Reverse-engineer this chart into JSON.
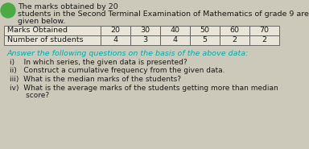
{
  "title_line1": "The marks obtained by 20",
  "title_line2": "students in the Second Terminal Examination of Mathematics of grade 9 are",
  "title_line3": "given below.",
  "table_col1_header": "Marks Obtained",
  "table_col1_row2": "Number of students",
  "table_marks": [
    "20",
    "30",
    "40",
    "50",
    "60",
    "70"
  ],
  "table_students": [
    "4",
    "3",
    "4",
    "5",
    "2",
    "2"
  ],
  "answer_prompt": "Answer the following questions on the basis of the above data:",
  "q1": "i)    In which series, the given data is presented?",
  "q2": "ii)   Construct a cumulative frequency from the given data.",
  "q3": "iii)  What is the median marks of the students?",
  "q4a": "iv)  What is the average marks of the students getting more than median",
  "q4b": "       score?",
  "title_color": "#1a1a1a",
  "answer_prompt_color": "#00aaaa",
  "question_color": "#1a1a1a",
  "table_border_color": "#555555",
  "table_text_color": "#1a1a1a",
  "bg_color": "#ccc9bb",
  "circle_color": "#4aaa44",
  "title_fontsize": 6.8,
  "table_fontsize": 6.8,
  "question_fontsize": 6.5,
  "prompt_fontsize": 6.8
}
